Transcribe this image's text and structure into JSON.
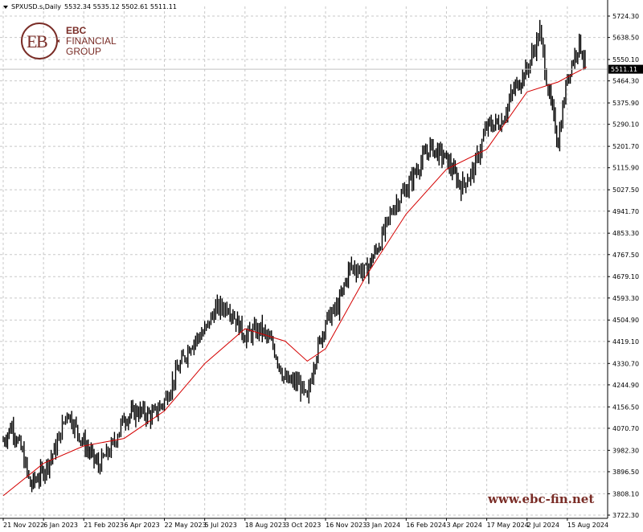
{
  "header": {
    "symbol": "SPXUSD.s,Daily",
    "ohlc": "5532.34 5535.12 5502.61 5511.11"
  },
  "logo": {
    "line1": "EBC",
    "line2": "FINANCIAL",
    "line3": "GROUP"
  },
  "watermark": "www.ebc-fin.net",
  "colors": {
    "candle": "#000000",
    "ma": "#d40000",
    "grid": "#c8c8c8",
    "brand": "#7a2d27"
  },
  "chart_data": {
    "type": "line",
    "instrument": "SPXUSD.s",
    "timeframe": "Daily",
    "last_price": "5511.11",
    "ylim": [
      3722.3,
      5724.3
    ],
    "y_ticks": [
      "5724.30",
      "5638.50",
      "5550.10",
      "5464.30",
      "5375.90",
      "5290.10",
      "5201.70",
      "5115.90",
      "5027.50",
      "4941.70",
      "4853.30",
      "4767.50",
      "4679.10",
      "4593.30",
      "4504.90",
      "4419.10",
      "4330.70",
      "4244.90",
      "4156.50",
      "4070.70",
      "3982.30",
      "3896.50",
      "3808.10",
      "3722.30"
    ],
    "x_ticks": [
      "21 Nov 2022",
      "6 Jan 2023",
      "21 Feb 2023",
      "6 Apr 2023",
      "22 May 2023",
      "5 Jul 2023",
      "18 Aug 2023",
      "3 Oct 2023",
      "16 Nov 2023",
      "3 Jan 2024",
      "16 Feb 2024",
      "3 Apr 2024",
      "17 May 2024",
      "2 Jul 2024",
      "15 Aug 2024"
    ],
    "series": [
      {
        "style": "bars",
        "x": [
          "21 Nov 2022",
          "1 Dec 2022",
          "13 Dec 2022",
          "22 Dec 2022",
          "6 Jan 2023",
          "20 Jan 2023",
          "2 Feb 2023",
          "21 Feb 2023",
          "9 Mar 2023",
          "23 Mar 2023",
          "6 Apr 2023",
          "21 Apr 2023",
          "8 May 2023",
          "22 May 2023",
          "5 Jun 2023",
          "20 Jun 2023",
          "5 Jul 2023",
          "17 Jul 2023",
          "31 Jul 2023",
          "18 Aug 2023",
          "5 Sep 2023",
          "19 Sep 2023",
          "3 Oct 2023",
          "18 Oct 2023",
          "27 Oct 2023",
          "3 Nov 2023",
          "16 Nov 2023",
          "1 Dec 2023",
          "15 Dec 2023",
          "3 Jan 2024",
          "19 Jan 2024",
          "2 Feb 2024",
          "16 Feb 2024",
          "1 Mar 2024",
          "15 Mar 2024",
          "3 Apr 2024",
          "19 Apr 2024",
          "3 May 2024",
          "17 May 2024",
          "3 Jun 2024",
          "17 Jun 2024",
          "2 Jul 2024",
          "16 Jul 2024",
          "25 Jul 2024",
          "5 Aug 2024",
          "15 Aug 2024",
          "28 Aug 2024",
          "5 Sep 2024"
        ],
        "values": [
          4020,
          4080,
          3970,
          3840,
          3900,
          3990,
          4140,
          4010,
          3920,
          3990,
          4110,
          4140,
          4120,
          4180,
          4300,
          4410,
          4460,
          4550,
          4560,
          4440,
          4470,
          4400,
          4260,
          4250,
          4180,
          4330,
          4500,
          4560,
          4720,
          4700,
          4820,
          4960,
          5030,
          5120,
          5200,
          5150,
          5040,
          5110,
          5280,
          5300,
          5430,
          5510,
          5660,
          5430,
          5220,
          5480,
          5620,
          5511
        ]
      },
      {
        "style": "line",
        "name": "MA",
        "x": [
          "21 Nov 2022",
          "6 Jan 2023",
          "21 Feb 2023",
          "6 Apr 2023",
          "22 May 2023",
          "5 Jul 2023",
          "18 Aug 2023",
          "3 Oct 2023",
          "27 Oct 2023",
          "16 Nov 2023",
          "3 Jan 2024",
          "16 Feb 2024",
          "3 Apr 2024",
          "17 May 2024",
          "2 Jul 2024",
          "5 Aug 2024",
          "15 Aug 2024",
          "5 Sep 2024"
        ],
        "values": [
          3800,
          3930,
          4000,
          4030,
          4140,
          4330,
          4470,
          4420,
          4340,
          4390,
          4680,
          4930,
          5110,
          5190,
          5420,
          5460,
          5480,
          5520
        ]
      }
    ]
  }
}
